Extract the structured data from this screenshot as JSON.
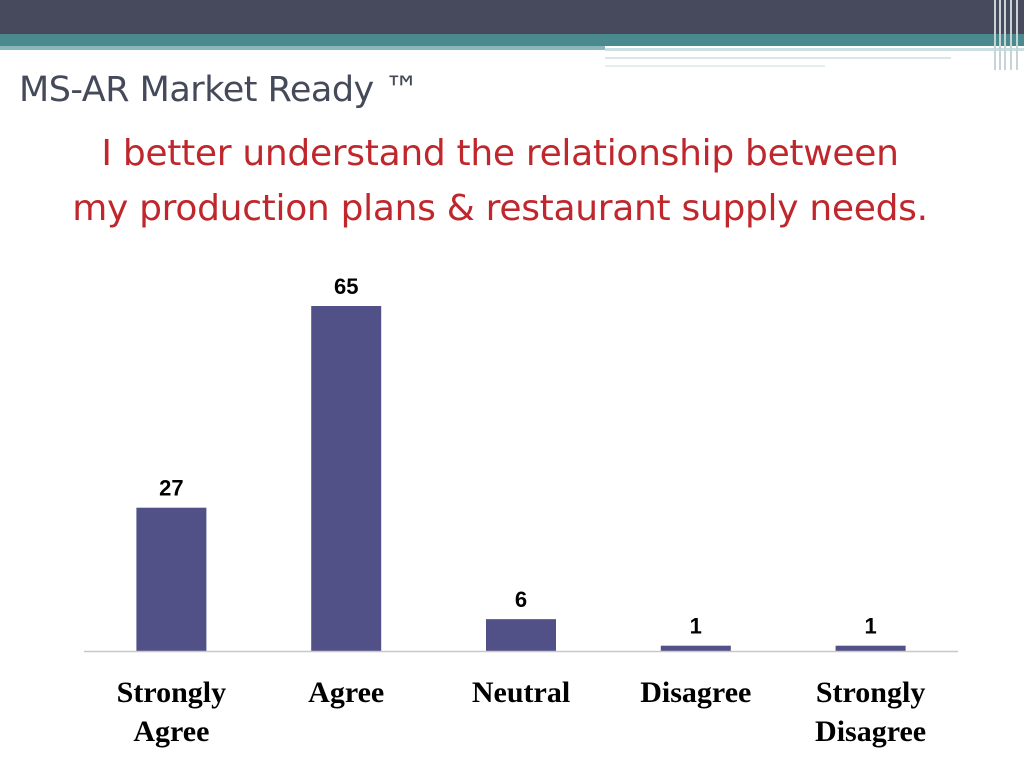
{
  "header": {
    "title": "MS-AR Market Ready ™",
    "subtitle_lines": [
      "I better understand the relationship between",
      "my production plans & restaurant supply needs."
    ]
  },
  "colors": {
    "bar": "#515188",
    "title": "#444a59",
    "subtitle": "#c0272d",
    "top_band": "#464a5c",
    "teal_band": "#4a8a8f"
  },
  "chart_data": {
    "type": "bar",
    "title": "",
    "xlabel": "",
    "ylabel": "",
    "categories": [
      "Strongly Agree",
      "Agree",
      "Neutral",
      "Disagree",
      "Strongly Disagree"
    ],
    "values": [
      27,
      65,
      6,
      1,
      1
    ],
    "data_labels": true,
    "ylim": [
      0,
      65
    ],
    "grid": false,
    "legend": "none"
  }
}
